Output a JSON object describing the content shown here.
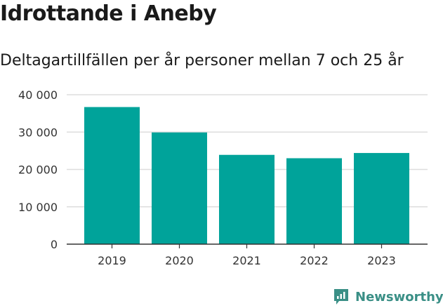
{
  "header": {
    "title": "Idrottande i Aneby",
    "subtitle": "Deltagartillfällen per år personer mellan 7 och 25 år"
  },
  "brand": {
    "name": "Newsworthy",
    "icon": "newsworthy-logo-icon"
  },
  "colors": {
    "bar": "#00a39a",
    "grid": "#dddddd",
    "axis": "#333333",
    "brand": "#3a8f86"
  },
  "chart_data": {
    "type": "bar",
    "categories": [
      "2019",
      "2020",
      "2021",
      "2022",
      "2023"
    ],
    "values": [
      36700,
      29900,
      23900,
      23000,
      24400
    ],
    "ylim": [
      0,
      40000
    ],
    "yticks": [
      0,
      10000,
      20000,
      30000,
      40000
    ],
    "ytick_labels": [
      "0",
      "10 000",
      "20 000",
      "30 000",
      "40 000"
    ],
    "grid": true
  }
}
